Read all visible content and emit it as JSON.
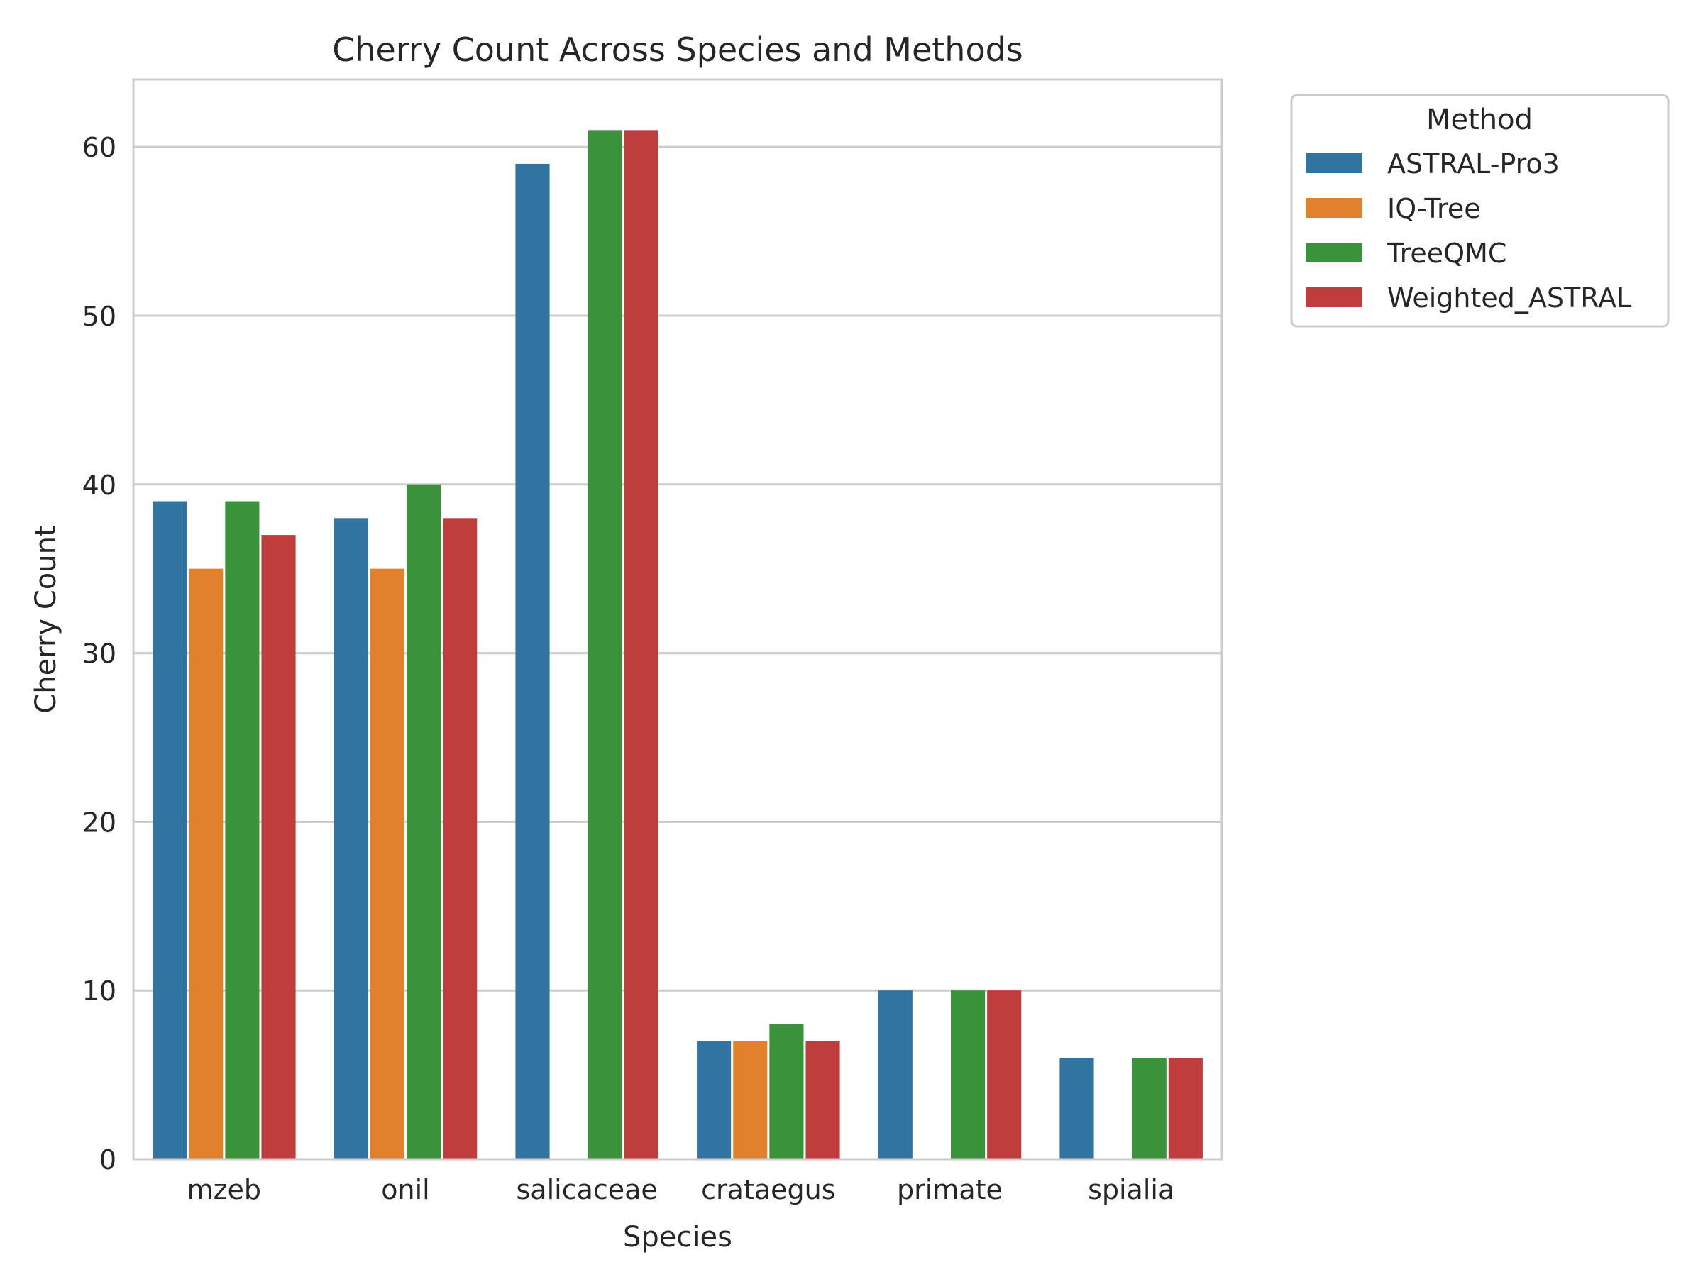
{
  "chart_data": {
    "type": "bar",
    "title": "Cherry Count Across Species and Methods",
    "xlabel": "Species",
    "ylabel": "Cherry Count",
    "categories": [
      "mzeb",
      "onil",
      "salicaceae",
      "crataegus",
      "primate",
      "spialia"
    ],
    "ylim": [
      0,
      64
    ],
    "yticks": [
      0,
      10,
      20,
      30,
      40,
      50,
      60
    ],
    "grid": "y",
    "legend": {
      "title": "Method",
      "placement": "outside-top-right"
    },
    "series": [
      {
        "name": "ASTRAL-Pro3",
        "color": "#3274a1",
        "values": [
          39,
          38,
          59,
          7,
          10,
          6
        ]
      },
      {
        "name": "IQ-Tree",
        "color": "#e1812c",
        "values": [
          35,
          35,
          null,
          7,
          null,
          null
        ]
      },
      {
        "name": "TreeQMC",
        "color": "#3a923a",
        "values": [
          39,
          40,
          61,
          8,
          10,
          6
        ]
      },
      {
        "name": "Weighted_ASTRAL",
        "color": "#c03d3e",
        "values": [
          37,
          38,
          61,
          7,
          10,
          6
        ]
      }
    ]
  }
}
